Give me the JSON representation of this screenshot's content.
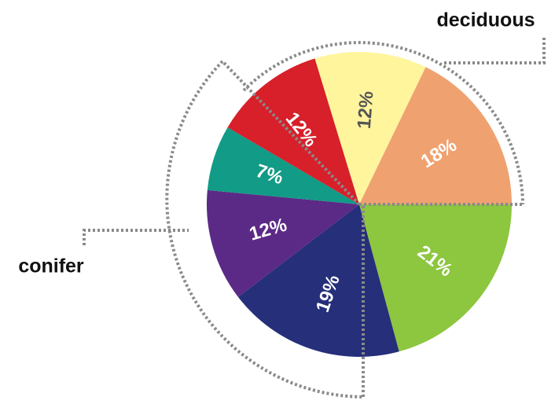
{
  "chart_data": {
    "type": "pie",
    "categories": [
      null,
      null,
      null,
      null,
      null,
      null,
      null
    ],
    "values": [
      21,
      19,
      12,
      7,
      12,
      12,
      18
    ],
    "value_labels": [
      "21%",
      "19%",
      "12%",
      "7%",
      "12%",
      "12%",
      "18%"
    ],
    "colors": [
      "#8dc63f",
      "#262f7a",
      "#5b2a86",
      "#129b86",
      "#d7202a",
      "#fff59d",
      "#f0a170"
    ],
    "annotations": [
      "deciduous",
      "conifer"
    ]
  }
}
